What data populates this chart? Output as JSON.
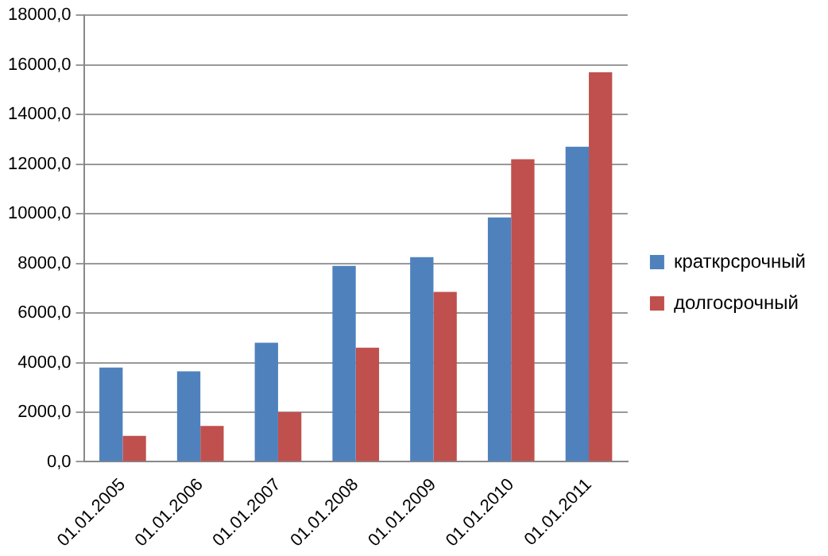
{
  "chart_data": {
    "type": "bar",
    "categories": [
      "01.01.2005",
      "01.01.2006",
      "01.01.2007",
      "01.01.2008",
      "01.01.2009",
      "01.01.2010",
      "01.01.2011"
    ],
    "series": [
      {
        "name": "краткрсрочный",
        "color": "#4f81bd",
        "values": [
          3800,
          3650,
          4800,
          7900,
          8250,
          9850,
          12700
        ]
      },
      {
        "name": "долгосрочный",
        "color": "#c0504d",
        "values": [
          1050,
          1450,
          2000,
          4600,
          6850,
          12200,
          15700
        ]
      }
    ],
    "ylim": [
      0,
      18000
    ],
    "yticks": [
      {
        "value": 0,
        "label": "0,0"
      },
      {
        "value": 2000,
        "label": "2000,0"
      },
      {
        "value": 4000,
        "label": "4000,0"
      },
      {
        "value": 6000,
        "label": "6000,0"
      },
      {
        "value": 8000,
        "label": "8000,0"
      },
      {
        "value": 10000,
        "label": "10000,0"
      },
      {
        "value": 12000,
        "label": "12000,0"
      },
      {
        "value": 14000,
        "label": "14000,0"
      },
      {
        "value": 16000,
        "label": "16000,0"
      },
      {
        "value": 18000,
        "label": "18000,0"
      }
    ],
    "grid": "y",
    "legend": "right"
  }
}
